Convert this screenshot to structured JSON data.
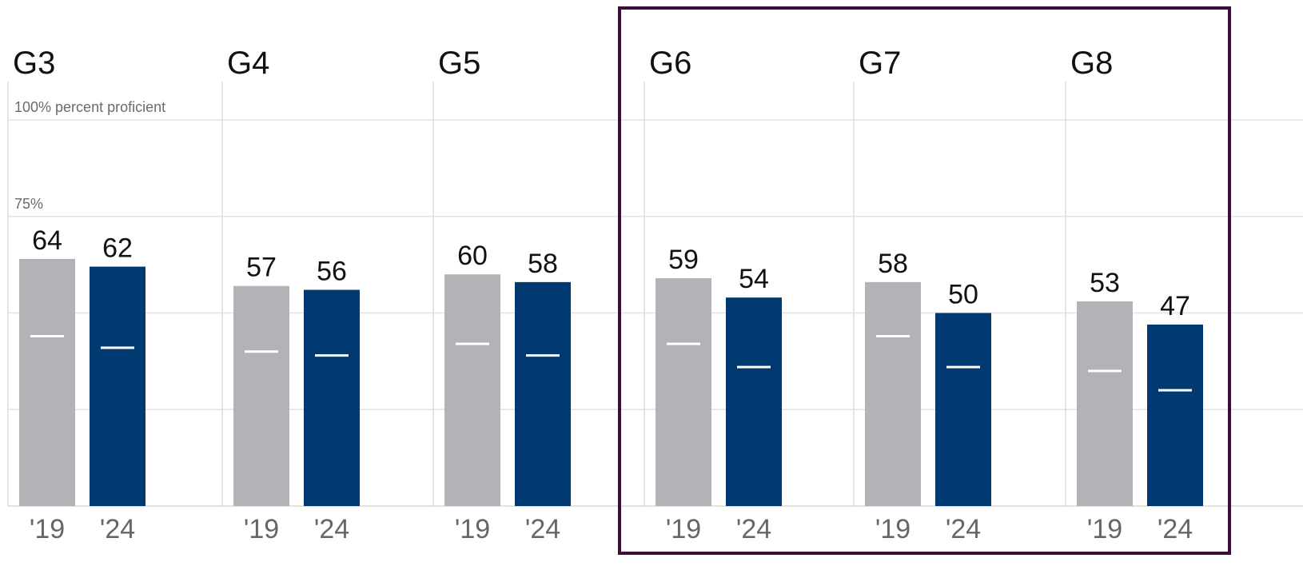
{
  "chart_data": {
    "type": "bar",
    "ylim": [
      0,
      100
    ],
    "grid": true,
    "series": [
      {
        "name": "'19",
        "color": "#b1b3b6"
      },
      {
        "name": "'24",
        "color": "#003a70"
      }
    ],
    "marker_color": "#ffffff",
    "highlight_color": "#3c0c3b",
    "y_gridline_values": [
      100,
      75,
      50,
      25
    ],
    "y_gridline_labels": [
      "100% percent proficient",
      "75%",
      "",
      ""
    ],
    "panels": [
      {
        "title": "G3",
        "categories": [
          "'19",
          "'24"
        ],
        "values": [
          64,
          62
        ],
        "markers": [
          44,
          41
        ],
        "highlighted": false
      },
      {
        "title": "G4",
        "categories": [
          "'19",
          "'24"
        ],
        "values": [
          57,
          56
        ],
        "markers": [
          40,
          39
        ],
        "highlighted": false
      },
      {
        "title": "G5",
        "categories": [
          "'19",
          "'24"
        ],
        "values": [
          60,
          58
        ],
        "markers": [
          42,
          39
        ],
        "highlighted": false
      },
      {
        "title": "G6",
        "categories": [
          "'19",
          "'24"
        ],
        "values": [
          59,
          54
        ],
        "markers": [
          42,
          36
        ],
        "highlighted": true
      },
      {
        "title": "G7",
        "categories": [
          "'19",
          "'24"
        ],
        "values": [
          58,
          50
        ],
        "markers": [
          44,
          36
        ],
        "highlighted": true
      },
      {
        "title": "G8",
        "categories": [
          "'19",
          "'24"
        ],
        "values": [
          53,
          47
        ],
        "markers": [
          35,
          30
        ],
        "highlighted": true
      }
    ]
  }
}
